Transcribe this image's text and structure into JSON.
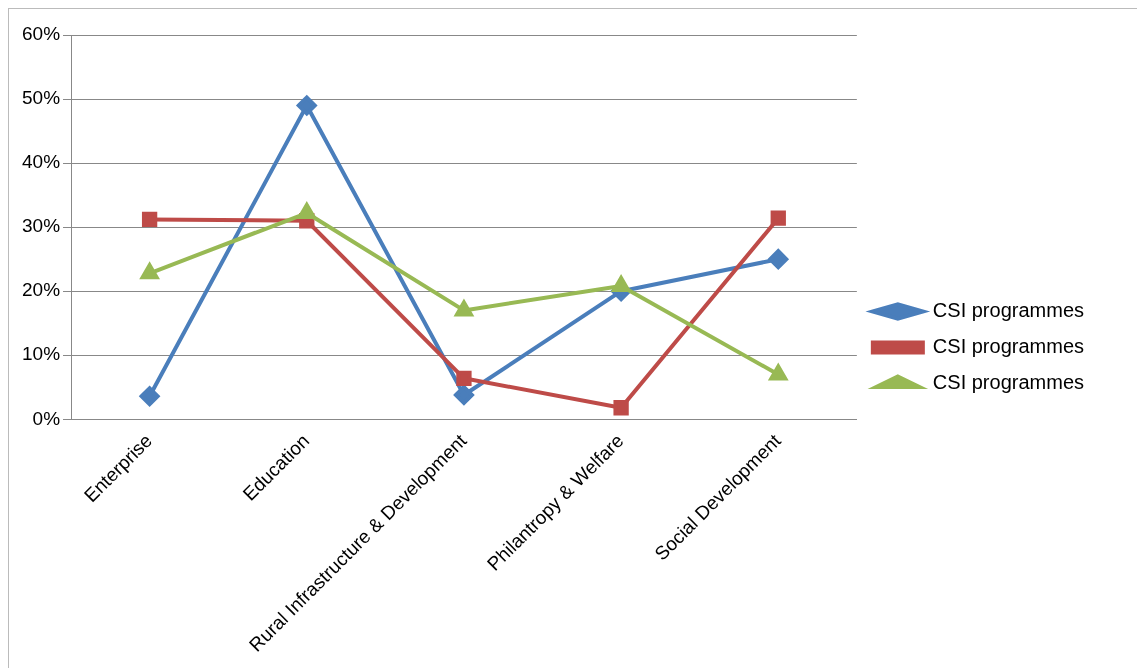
{
  "chart_data": {
    "type": "line",
    "categories": [
      "Enterprise",
      "Education",
      "Rural Infrastructure & Development",
      "Philantropy & Welfare",
      "Social Development"
    ],
    "series": [
      {
        "name": "CSI programmes",
        "color": "#4a7ebb",
        "marker": "diamond",
        "values": [
          3.6,
          49,
          3.8,
          20,
          25
        ]
      },
      {
        "name": "CSI programmes",
        "color": "#be4b48",
        "marker": "square",
        "values": [
          31.2,
          31,
          6.4,
          1.8,
          31.4
        ]
      },
      {
        "name": "CSI programmes",
        "color": "#98b954",
        "marker": "triangle",
        "values": [
          22.8,
          32.2,
          17,
          20.8,
          7
        ]
      }
    ],
    "ylim": [
      0,
      60
    ],
    "yticks": [
      {
        "value": 0,
        "label": "0%"
      },
      {
        "value": 10,
        "label": "10%"
      },
      {
        "value": 20,
        "label": "20%"
      },
      {
        "value": 30,
        "label": "30%"
      },
      {
        "value": 40,
        "label": "40%"
      },
      {
        "value": 50,
        "label": "50%"
      },
      {
        "value": 60,
        "label": "60%"
      }
    ],
    "grid": "y",
    "legend": "right"
  }
}
